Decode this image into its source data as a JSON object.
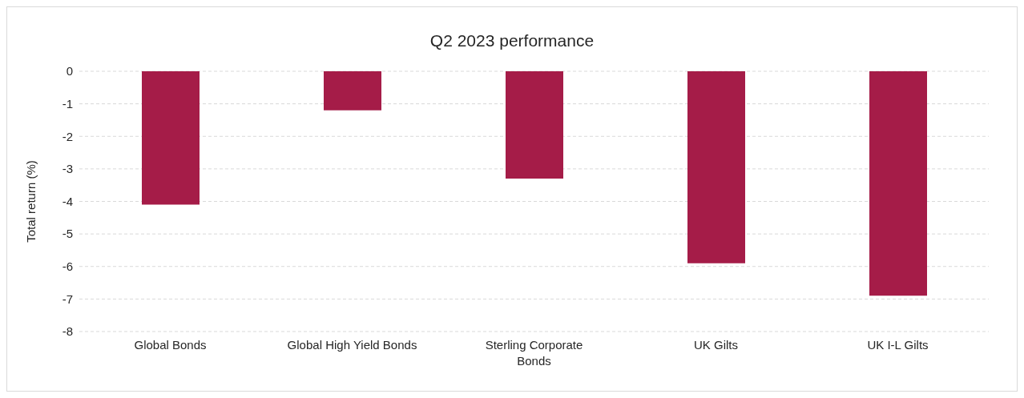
{
  "chart_data": {
    "type": "bar",
    "title": "Q2 2023 performance",
    "ylabel": "Total return (%)",
    "categories": [
      "Global Bonds",
      "Global High Yield Bonds",
      "Sterling Corporate Bonds",
      "UK Gilts",
      "UK I-L Gilts"
    ],
    "values": [
      -4.1,
      -1.2,
      -3.3,
      -5.9,
      -6.9
    ],
    "color": "#a51c48",
    "ylim": [
      -8,
      0
    ],
    "yticks": [
      -8,
      -7,
      -6,
      -5,
      -4,
      -3,
      -2,
      -1,
      0
    ],
    "grid": "y",
    "legend": false
  }
}
